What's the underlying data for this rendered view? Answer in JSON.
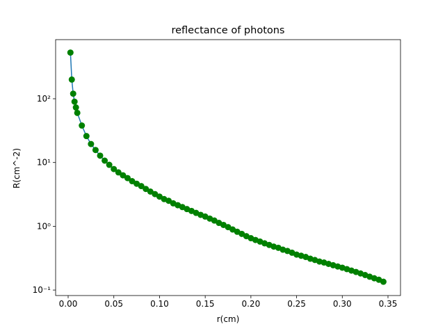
{
  "chart_data": {
    "type": "line",
    "title": "reflectance of photons",
    "xlabel": "r(cm)",
    "ylabel": "R(cm^-2)",
    "yscale": "log",
    "line_color": "#1f77b4",
    "marker_color": "#008000",
    "x": [
      0.0025,
      0.004,
      0.0055,
      0.007,
      0.0085,
      0.01,
      0.015,
      0.02,
      0.025,
      0.03,
      0.035,
      0.04,
      0.045,
      0.05,
      0.055,
      0.06,
      0.065,
      0.07,
      0.075,
      0.08,
      0.085,
      0.09,
      0.095,
      0.1,
      0.105,
      0.11,
      0.115,
      0.12,
      0.125,
      0.13,
      0.135,
      0.14,
      0.145,
      0.15,
      0.155,
      0.16,
      0.165,
      0.17,
      0.175,
      0.18,
      0.185,
      0.19,
      0.195,
      0.2,
      0.205,
      0.21,
      0.215,
      0.22,
      0.225,
      0.23,
      0.235,
      0.24,
      0.245,
      0.25,
      0.255,
      0.26,
      0.265,
      0.27,
      0.275,
      0.28,
      0.285,
      0.29,
      0.295,
      0.3,
      0.305,
      0.31,
      0.315,
      0.32,
      0.325,
      0.33,
      0.335,
      0.34,
      0.345
    ],
    "values": [
      530,
      200,
      120,
      90,
      73,
      60,
      38,
      26,
      19.5,
      15.7,
      12.8,
      10.7,
      9.2,
      7.9,
      7.0,
      6.3,
      5.7,
      5.1,
      4.65,
      4.27,
      3.85,
      3.5,
      3.2,
      2.92,
      2.67,
      2.51,
      2.29,
      2.14,
      2.0,
      1.86,
      1.74,
      1.62,
      1.51,
      1.42,
      1.32,
      1.23,
      1.13,
      1.05,
      0.97,
      0.89,
      0.82,
      0.76,
      0.7,
      0.65,
      0.61,
      0.575,
      0.54,
      0.51,
      0.48,
      0.46,
      0.43,
      0.41,
      0.385,
      0.36,
      0.345,
      0.33,
      0.31,
      0.296,
      0.28,
      0.27,
      0.257,
      0.245,
      0.234,
      0.224,
      0.213,
      0.202,
      0.192,
      0.182,
      0.172,
      0.162,
      0.153,
      0.145,
      0.135
    ],
    "xlim": [
      -0.0137,
      0.3637
    ],
    "ylim": [
      0.082,
      845
    ],
    "xticks": [
      {
        "value": 0,
        "label": "0.00"
      },
      0.05,
      {
        "value": 0.1,
        "label": "0.10"
      },
      0.15,
      {
        "value": 0.2,
        "label": "0.20"
      },
      0.25,
      {
        "value": 0.3,
        "label": "0.30"
      },
      0.35
    ],
    "yticks": [
      {
        "value": 0.1,
        "label": "10⁻¹"
      },
      {
        "value": 1,
        "label": "10⁰"
      },
      {
        "value": 10,
        "label": "10¹"
      },
      {
        "value": 100,
        "label": "10²"
      }
    ]
  }
}
